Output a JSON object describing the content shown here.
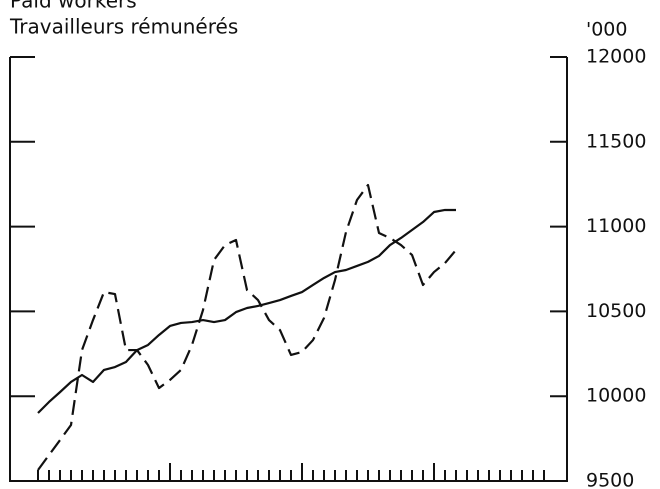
{
  "chart_data": {
    "type": "line",
    "title": "Paid workers",
    "subtitle": "Travailleurs rémunérés",
    "unit": "'000",
    "categories": [
      null,
      null,
      null,
      null,
      null,
      null,
      null,
      null,
      null,
      null,
      null,
      null,
      null,
      null,
      null,
      null,
      null,
      null,
      null,
      null,
      null,
      null,
      null,
      null,
      null,
      null,
      null,
      null,
      null,
      null,
      null,
      null,
      null,
      null,
      null,
      null,
      null,
      null,
      null,
      null,
      null,
      null,
      null,
      null,
      null,
      null,
      null
    ],
    "series": [
      {
        "color": "#111111",
        "dash": "solid",
        "values": [
          9901,
          9966,
          10024,
          10084,
          10125,
          10084,
          10155,
          10172,
          10202,
          10272,
          10302,
          10361,
          10414,
          10432,
          10437,
          10449,
          10437,
          10449,
          10496,
          10520,
          10532,
          10549,
          10567,
          10591,
          10614,
          10656,
          10697,
          10732,
          10744,
          10768,
          10792,
          10827,
          10891,
          10933,
          10980,
          11027,
          11086,
          11098,
          11098,
          null,
          null,
          null,
          null,
          null,
          null,
          null,
          null
        ]
      },
      {
        "color": "#111111",
        "dash": "dashed",
        "values": [
          9565,
          9653,
          9741,
          9830,
          10272,
          10449,
          10614,
          10602,
          10272,
          10272,
          10184,
          10048,
          10096,
          10155,
          10302,
          10508,
          10803,
          10891,
          10921,
          10626,
          10567,
          10449,
          10390,
          10243,
          10261,
          10331,
          10461,
          10685,
          10968,
          11157,
          11245,
          10962,
          10933,
          10891,
          10833,
          10656,
          10732,
          10785,
          10862,
          null,
          null,
          null,
          null,
          null,
          null,
          null,
          null
        ]
      }
    ],
    "ylim": [
      9500,
      12000
    ],
    "yticks": [
      9500,
      10000,
      10500,
      11000,
      11500,
      12000
    ],
    "axis_side": "right",
    "grid": false
  }
}
